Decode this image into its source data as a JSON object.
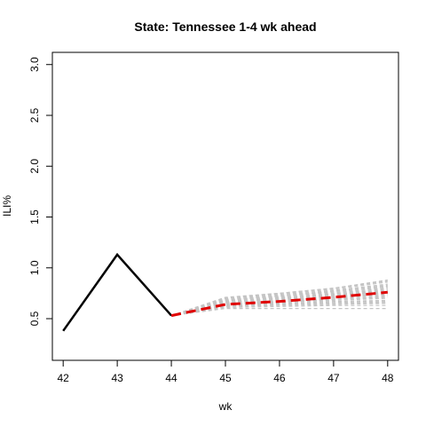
{
  "chart_data": {
    "type": "line",
    "title": "State: Tennessee 1-4 wk ahead",
    "xlabel": "wk",
    "ylabel": "ILI%",
    "xlim": [
      41.8,
      48.2
    ],
    "ylim": [
      0.09,
      3.12
    ],
    "x_ticks": [
      42,
      43,
      44,
      45,
      46,
      47,
      48
    ],
    "y_ticks": [
      0.5,
      1.0,
      1.5,
      2.0,
      2.5,
      3.0
    ],
    "y_tick_labels": [
      "0.5",
      "1.0",
      "1.5",
      "2.0",
      "2.5",
      "3.0"
    ],
    "grid": false,
    "colors": {
      "observed": "#000000",
      "forecast": "#e00000",
      "samples": "#c4c4c4"
    },
    "series": [
      {
        "role": "observed",
        "style": "solid",
        "x": [
          42,
          43,
          44
        ],
        "y": [
          0.38,
          1.13,
          0.53
        ]
      },
      {
        "role": "forecast-mean",
        "style": "dashed",
        "x": [
          44,
          45,
          46,
          47,
          48
        ],
        "y": [
          0.53,
          0.64,
          0.67,
          0.71,
          0.76
        ]
      }
    ],
    "sample_paths": {
      "x": [
        44,
        45,
        46,
        47,
        48
      ],
      "y": [
        [
          0.53,
          0.6,
          0.6,
          0.6,
          0.6
        ],
        [
          0.53,
          0.62,
          0.63,
          0.64,
          0.65
        ],
        [
          0.53,
          0.63,
          0.65,
          0.67,
          0.68
        ],
        [
          0.53,
          0.63,
          0.66,
          0.68,
          0.7
        ],
        [
          0.53,
          0.64,
          0.66,
          0.69,
          0.71
        ],
        [
          0.53,
          0.64,
          0.67,
          0.7,
          0.73
        ],
        [
          0.53,
          0.65,
          0.68,
          0.71,
          0.74
        ],
        [
          0.53,
          0.65,
          0.68,
          0.72,
          0.75
        ],
        [
          0.53,
          0.66,
          0.69,
          0.73,
          0.77
        ],
        [
          0.53,
          0.66,
          0.7,
          0.74,
          0.78
        ],
        [
          0.53,
          0.67,
          0.71,
          0.75,
          0.8
        ],
        [
          0.53,
          0.68,
          0.72,
          0.76,
          0.81
        ],
        [
          0.53,
          0.68,
          0.72,
          0.77,
          0.83
        ],
        [
          0.53,
          0.69,
          0.73,
          0.78,
          0.84
        ],
        [
          0.53,
          0.7,
          0.74,
          0.79,
          0.86
        ],
        [
          0.53,
          0.7,
          0.75,
          0.8,
          0.88
        ],
        [
          0.53,
          0.61,
          0.62,
          0.63,
          0.63
        ],
        [
          0.53,
          0.62,
          0.64,
          0.65,
          0.66
        ],
        [
          0.53,
          0.64,
          0.67,
          0.69,
          0.72
        ],
        [
          0.53,
          0.66,
          0.7,
          0.73,
          0.76
        ],
        [
          0.53,
          0.67,
          0.7,
          0.74,
          0.79
        ],
        [
          0.53,
          0.69,
          0.72,
          0.77,
          0.82
        ],
        [
          0.53,
          0.71,
          0.75,
          0.8,
          0.87
        ],
        [
          0.53,
          0.63,
          0.64,
          0.66,
          0.67
        ]
      ]
    }
  }
}
